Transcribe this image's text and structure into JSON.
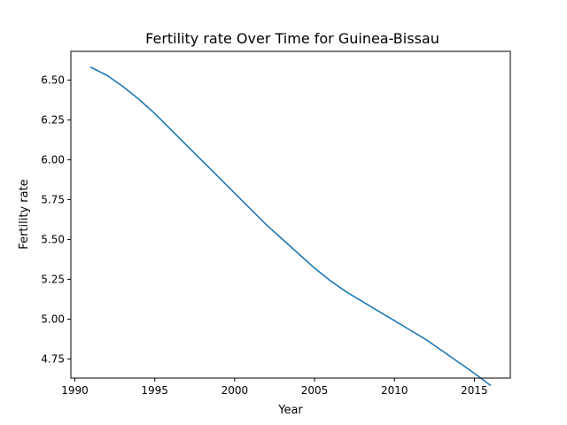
{
  "chart_data": {
    "type": "line",
    "title": "Fertility rate Over Time for Guinea-Bissau",
    "xlabel": "Year",
    "ylabel": "Fertility rate",
    "xlim": [
      1989.75,
      2017.25
    ],
    "ylim": [
      4.63,
      6.68
    ],
    "xticks": [
      1990,
      1995,
      2000,
      2005,
      2010,
      2015
    ],
    "yticks": [
      4.75,
      5.0,
      5.25,
      5.5,
      5.75,
      6.0,
      6.25,
      6.5
    ],
    "xtick_labels": [
      "1990",
      "1995",
      "2000",
      "2005",
      "2010",
      "2015"
    ],
    "ytick_labels": [
      "4.75",
      "5.00",
      "5.25",
      "5.50",
      "5.75",
      "6.00",
      "6.25",
      "6.50"
    ],
    "grid": false,
    "series": [
      {
        "color": "#1f77b4",
        "x": [
          1991,
          1992,
          1993,
          1994,
          1995,
          1996,
          1997,
          1998,
          1999,
          2000,
          2001,
          2002,
          2003,
          2004,
          2005,
          2006,
          2007,
          2008,
          2009,
          2010,
          2011,
          2012,
          2013,
          2014,
          2015,
          2016
        ],
        "y": [
          6.58,
          6.53,
          6.46,
          6.38,
          6.29,
          6.19,
          6.09,
          5.99,
          5.89,
          5.79,
          5.69,
          5.59,
          5.5,
          5.41,
          5.32,
          5.24,
          5.17,
          5.11,
          5.05,
          4.99,
          4.93,
          4.87,
          4.8,
          4.73,
          4.66,
          4.585
        ]
      }
    ]
  }
}
